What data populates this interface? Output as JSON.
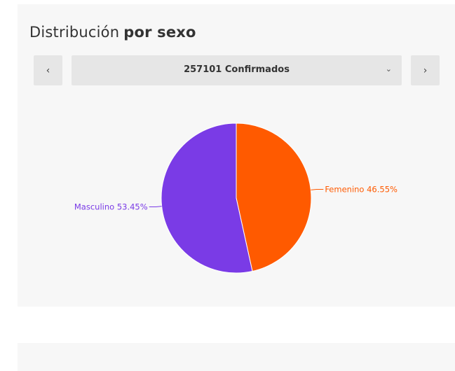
{
  "header": {
    "title_normal": "Distribución",
    "title_bold": "por sexo"
  },
  "selector": {
    "value": "257101 Confirmados",
    "prev_icon": "chevron-left-icon",
    "next_icon": "chevron-right-icon",
    "dropdown_icon": "chevron-down-icon"
  },
  "chart_data": {
    "type": "pie",
    "slices": [
      {
        "label": "Femenino 46.55%",
        "name": "Femenino",
        "value": 46.55,
        "color": "#ff5a00"
      },
      {
        "label": "Masculino 53.45%",
        "name": "Masculino",
        "value": 53.45,
        "color": "#7a3be6"
      }
    ]
  },
  "colors": {
    "card_background": "#f7f7f7",
    "button_background": "#e6e6e6",
    "femenino": "#ff5a00",
    "masculino": "#7a3be6"
  }
}
